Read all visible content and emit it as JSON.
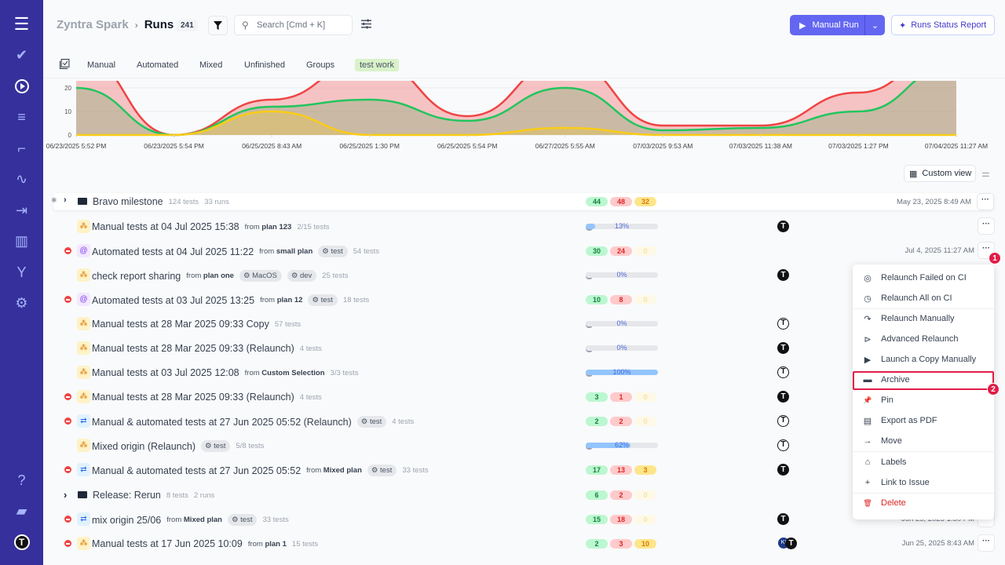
{
  "sidebar": {
    "top_icons": [
      "menu-icon",
      "check-icon",
      "play-circle-icon",
      "list-check-icon",
      "steps-icon",
      "pulse-icon",
      "import-icon",
      "chart-bar-icon",
      "branch-icon",
      "gear-icon"
    ],
    "bottom_icons": [
      "help-icon",
      "folder-icon",
      "avatar"
    ],
    "avatar_letter": "T"
  },
  "header": {
    "project": "Zyntra Spark",
    "separator": "›",
    "page": "Runs",
    "count": "241",
    "search_placeholder": "Search [Cmd + K]",
    "manual_run": "Manual Run",
    "report": "Runs Status Report"
  },
  "tabs": [
    "Manual",
    "Automated",
    "Mixed",
    "Unfinished",
    "Groups",
    "test work"
  ],
  "colors": {
    "sidebar": "#36309c",
    "accent": "#6366f1",
    "passed": "#22c55e",
    "failed": "#ef4444",
    "skipped": "#facc15"
  },
  "chart_data": {
    "type": "area",
    "x": [
      "06/23/2025 5:52 PM",
      "06/23/2025 5:54 PM",
      "06/25/2025 8:43 AM",
      "06/25/2025 1:30 PM",
      "06/25/2025 5:54 PM",
      "06/27/2025 5:55 AM",
      "07/03/2025 9:53 AM",
      "07/03/2025 11:38 AM",
      "07/03/2025 1:27 PM",
      "07/04/2025 11:27 AM"
    ],
    "yticks": [
      0,
      10,
      20
    ],
    "ylim": [
      0,
      23
    ],
    "grid": true,
    "series": [
      {
        "color": "#ef4444",
        "values": [
          35,
          0,
          15,
          32,
          8,
          32,
          4,
          4,
          18,
          40
        ]
      },
      {
        "color": "#22c55e",
        "values": [
          20,
          0,
          12,
          15,
          6,
          20,
          2,
          3,
          10,
          30
        ]
      },
      {
        "color": "#facc15",
        "values": [
          0,
          0,
          10,
          0,
          0,
          3,
          0,
          0,
          0,
          0
        ]
      }
    ]
  },
  "toolbar": {
    "custom_view": "Custom view"
  },
  "group1": {
    "name": "Bravo milestone",
    "tests": "124 tests",
    "runs": "33 runs",
    "passed": "44",
    "failed": "48",
    "skipped": "32",
    "date": "May 23, 2025 8:49 AM"
  },
  "group2": {
    "name": "Release: Rerun",
    "tests": "8 tests",
    "runs": "2 runs",
    "passed": "6",
    "failed": "2",
    "skipped": "0"
  },
  "runs": [
    {
      "status": "prog",
      "type": "manual",
      "name": "Manual tests at 04 Jul 2025 15:38",
      "from": "plan 123",
      "tags": [],
      "meta": "2/15 tests",
      "progress": "13%",
      "avatar": "filled",
      "dots": true
    },
    {
      "status": "fail",
      "type": "auto",
      "name": "Automated tests at 04 Jul 2025 11:22",
      "from": "small plan",
      "tags": [
        "test"
      ],
      "meta": "54 tests",
      "pills": [
        "30",
        "24",
        "0"
      ],
      "date": "Jul 4, 2025 11:27 AM",
      "dots": true
    },
    {
      "status": "prog",
      "type": "manual",
      "name": "check report sharing",
      "from": "plan one",
      "tags": [
        "MacOS",
        "dev"
      ],
      "meta": "25 tests",
      "progress": "0%",
      "avatar": "filled"
    },
    {
      "status": "fail",
      "type": "auto",
      "name": "Automated tests at 03 Jul 2025 13:25",
      "from": "plan 12",
      "tags": [
        "test"
      ],
      "meta": "18 tests",
      "pills": [
        "10",
        "8",
        "0"
      ]
    },
    {
      "status": "prog",
      "type": "manual",
      "name": "Manual tests at 28 Mar 2025 09:33 Copy",
      "tags": [],
      "meta": "57 tests",
      "progress": "0%",
      "avatar": "outline"
    },
    {
      "status": "prog",
      "type": "manual",
      "name": "Manual tests at 28 Mar 2025 09:33 (Relaunch)",
      "tags": [],
      "meta": "4 tests",
      "progress": "0%",
      "avatar": "filled"
    },
    {
      "status": "prog",
      "type": "manual",
      "name": "Manual tests at 03 Jul 2025 12:08",
      "from": "Custom Selection",
      "tags": [],
      "meta": "3/3 tests",
      "progress": "100%",
      "avatar": "outline"
    },
    {
      "status": "fail",
      "type": "manual",
      "name": "Manual tests at 28 Mar 2025 09:33 (Relaunch)",
      "tags": [],
      "meta": "4 tests",
      "pills": [
        "3",
        "1",
        "0"
      ],
      "avatar": "filled"
    },
    {
      "status": "fail",
      "type": "mixed",
      "name": "Manual & automated tests at 27 Jun 2025 05:52 (Relaunch)",
      "tags": [
        "test"
      ],
      "meta": "4 tests",
      "pills": [
        "2",
        "2",
        "0"
      ],
      "avatar": "outline"
    },
    {
      "status": "prog",
      "type": "manual",
      "name": "Mixed origin (Relaunch)",
      "tags": [
        "test"
      ],
      "meta": "5/8 tests",
      "progress": "62%",
      "avatar": "outline"
    },
    {
      "status": "fail",
      "type": "mixed",
      "name": "Manual & automated tests at 27 Jun 2025 05:52",
      "from": "Mixed plan",
      "tags": [
        "test"
      ],
      "meta": "33 tests",
      "pills": [
        "17",
        "13",
        "3"
      ],
      "avatar": "filled"
    },
    {
      "status": "fail",
      "type": "mixed",
      "name": "mix origin 25/06",
      "from": "Mixed plan",
      "tags": [
        "test"
      ],
      "meta": "33 tests",
      "pills": [
        "15",
        "18",
        "0"
      ],
      "avatar": "filled",
      "date": "Jun 25, 2025 1:30 PM",
      "dots": true
    },
    {
      "status": "fail",
      "type": "manual",
      "name": "Manual tests at 17 Jun 2025 10:09",
      "from": "plan 1",
      "tags": [],
      "meta": "15 tests",
      "pills": [
        "2",
        "3",
        "10"
      ],
      "avatar": "double",
      "avatar2": "KI",
      "date": "Jun 25, 2025 8:43 AM",
      "dots": true
    }
  ],
  "from_label": "from",
  "menu": {
    "items": [
      {
        "label": "Relaunch Failed on CI",
        "icon": "relaunch-failed-icon",
        "g": "◎"
      },
      {
        "label": "Relaunch All on CI",
        "icon": "relaunch-all-icon",
        "g": "◷"
      },
      {
        "label": "Relaunch Manually",
        "icon": "redo-icon",
        "g": "↷"
      },
      {
        "label": "Advanced Relaunch",
        "icon": "play-circle-icon",
        "g": "⊳"
      },
      {
        "label": "Launch a Copy Manually",
        "icon": "play-icon",
        "g": "▶"
      },
      {
        "label": "Archive",
        "icon": "archive-icon",
        "g": "▬"
      },
      {
        "label": "Pin",
        "icon": "pin-icon",
        "g": "📌"
      },
      {
        "label": "Export as PDF",
        "icon": "pdf-icon",
        "g": "▤"
      },
      {
        "label": "Move",
        "icon": "arrow-right-icon",
        "g": "→"
      },
      {
        "label": "Labels",
        "icon": "tag-icon",
        "g": "⌂"
      },
      {
        "label": "Link to Issue",
        "icon": "plus-icon",
        "g": "+"
      },
      {
        "label": "Delete",
        "icon": "trash-icon",
        "g": "🗑"
      }
    ]
  },
  "annotations": [
    "1",
    "2"
  ]
}
